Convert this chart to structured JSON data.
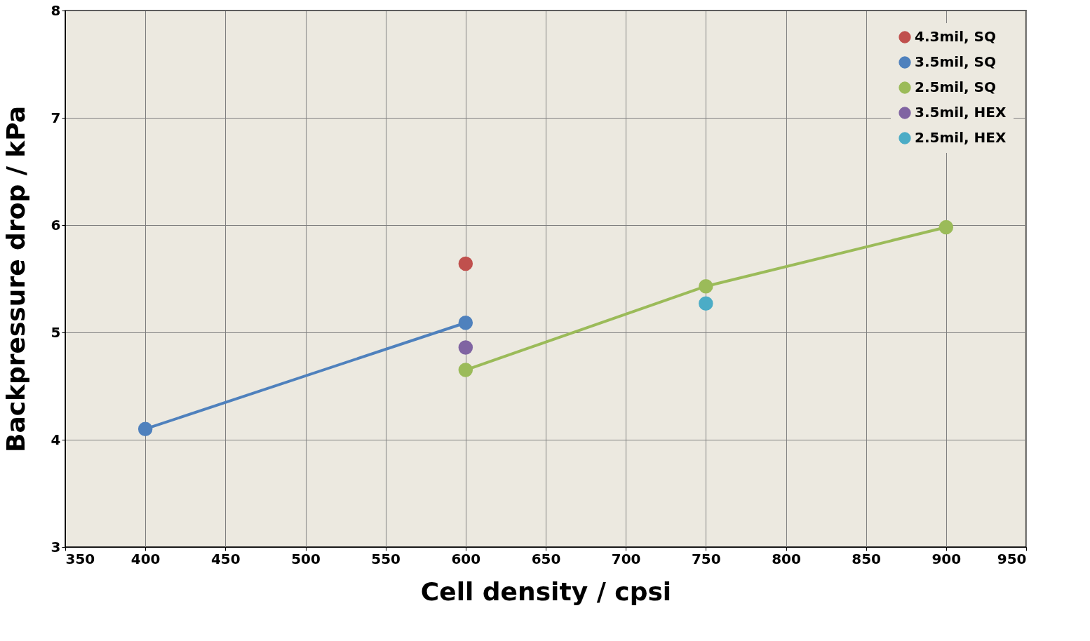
{
  "chart_data": {
    "type": "line",
    "xlabel": "Cell density / cpsi",
    "ylabel": "Backpressure drop / kPa",
    "xlim": [
      350,
      950
    ],
    "xticks": [
      350,
      400,
      450,
      500,
      550,
      600,
      650,
      700,
      750,
      800,
      850,
      900,
      950
    ],
    "ylim": [
      3,
      8
    ],
    "yticks": [
      3,
      4,
      5,
      6,
      7,
      8
    ],
    "grid": true,
    "legend": "top right",
    "marker": "circle",
    "line_style": "solid",
    "series": [
      {
        "name": "4.3mil, SQ",
        "color": "#c0504d",
        "x": [
          600
        ],
        "values": [
          5.64
        ]
      },
      {
        "name": "3.5mil, SQ",
        "color": "#4f81bd",
        "x": [
          400,
          600
        ],
        "values": [
          4.1,
          5.09
        ]
      },
      {
        "name": "2.5mil, SQ",
        "color": "#9bbb59",
        "x": [
          600,
          750,
          900
        ],
        "values": [
          4.65,
          5.43,
          5.98
        ]
      },
      {
        "name": "3.5mil, HEX",
        "color": "#8064a2",
        "x": [
          600
        ],
        "values": [
          4.86
        ]
      },
      {
        "name": "2.5mil, HEX",
        "color": "#4bacc6",
        "x": [
          750
        ],
        "values": [
          5.27
        ]
      }
    ]
  }
}
